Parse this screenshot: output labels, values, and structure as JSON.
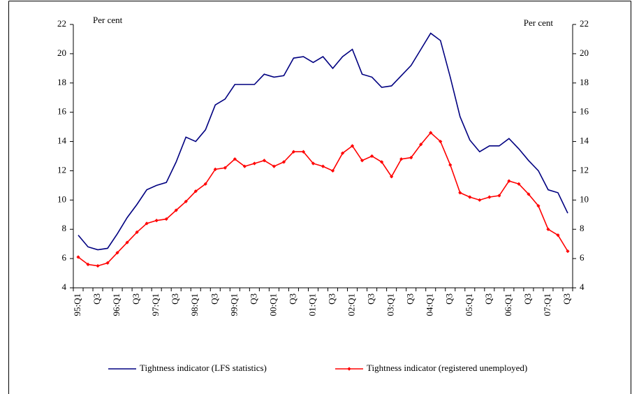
{
  "chart_data": {
    "type": "line",
    "y_label": "Per cent",
    "y2_label": "Per cent",
    "categories": [
      "95:Q1",
      null,
      "Q3",
      null,
      "96:Q1",
      null,
      "Q3",
      null,
      "97:Q1",
      null,
      "Q3",
      null,
      "98:Q1",
      null,
      "Q3",
      null,
      "99:Q1",
      null,
      "Q3",
      null,
      "00:Q1",
      null,
      "Q3",
      null,
      "01:Q1",
      null,
      "Q3",
      null,
      "02:Q1",
      null,
      "Q3",
      null,
      "03:Q1",
      null,
      "Q3",
      null,
      "04:Q1",
      null,
      "Q3",
      null,
      "05:Q1",
      null,
      "Q3",
      null,
      "06:Q1",
      null,
      "Q3",
      null,
      "07:Q1",
      null,
      "Q3"
    ],
    "series": [
      {
        "name": "Tightness indicator (LFS statistics)",
        "color": "#000080",
        "marker": false,
        "values": [
          7.6,
          6.8,
          6.6,
          6.7,
          7.7,
          8.8,
          9.7,
          10.7,
          11.0,
          11.2,
          12.6,
          14.3,
          14.0,
          14.8,
          16.5,
          16.9,
          17.9,
          17.9,
          17.9,
          18.6,
          18.4,
          18.5,
          19.7,
          19.8,
          19.4,
          19.8,
          19.0,
          19.8,
          20.3,
          18.6,
          18.4,
          17.7,
          17.8,
          18.5,
          19.2,
          20.3,
          21.4,
          20.9,
          18.4,
          15.7,
          14.1,
          13.3,
          13.7,
          13.7,
          14.2,
          13.5,
          12.7,
          12.0,
          10.7,
          10.5,
          9.1
        ]
      },
      {
        "name": "Tightness indicator (registered unemployed)",
        "color": "#ff0000",
        "marker": true,
        "values": [
          6.1,
          5.6,
          5.5,
          5.7,
          6.4,
          7.1,
          7.8,
          8.4,
          8.6,
          8.7,
          9.3,
          9.9,
          10.6,
          11.1,
          12.1,
          12.2,
          12.8,
          12.3,
          12.5,
          12.7,
          12.3,
          12.6,
          13.3,
          13.3,
          12.5,
          12.3,
          12.0,
          13.2,
          13.7,
          12.7,
          13.0,
          12.6,
          11.6,
          12.8,
          12.9,
          13.8,
          14.6,
          14.0,
          12.4,
          10.5,
          10.2,
          10.0,
          10.2,
          10.3,
          11.3,
          11.1,
          10.4,
          9.6,
          8.0,
          7.6,
          6.5
        ]
      }
    ],
    "ylim": [
      4,
      22
    ],
    "yticks": [
      4,
      6,
      8,
      10,
      12,
      14,
      16,
      18,
      20,
      22
    ],
    "y2lim": [
      4,
      22
    ],
    "y2ticks": [
      4,
      6,
      8,
      10,
      12,
      14,
      16,
      18,
      20,
      22
    ],
    "grid": false,
    "legend": "bottom"
  }
}
